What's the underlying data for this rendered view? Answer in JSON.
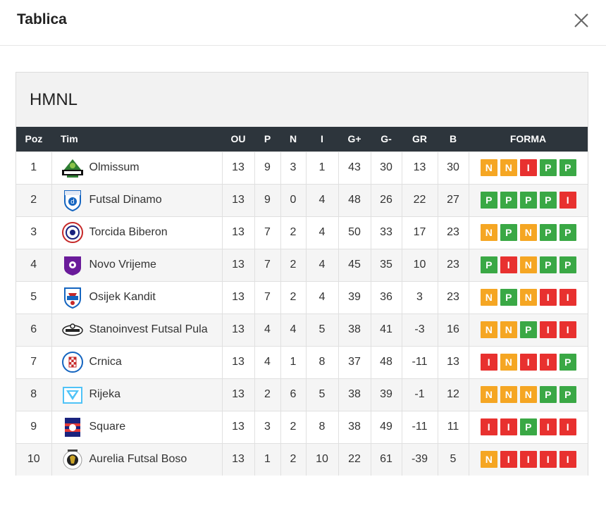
{
  "modal": {
    "title": "Tablica"
  },
  "league": {
    "name": "HMNL"
  },
  "columns": [
    "Poz",
    "Tim",
    "OU",
    "P",
    "N",
    "I",
    "G+",
    "G-",
    "GR",
    "B",
    "FORMA"
  ],
  "colors": {
    "N": "#f5a623",
    "P": "#3aa845",
    "I": "#e8312f",
    "header_bg": "#2d353c"
  },
  "rows": [
    {
      "poz": "1",
      "team": "Olmissum",
      "logo": "olmissum-logo",
      "ou": "13",
      "p": "9",
      "n": "3",
      "i": "1",
      "gplus": "43",
      "gminus": "30",
      "gr": "13",
      "b": "30",
      "forma": [
        "N",
        "N",
        "I",
        "P",
        "P"
      ]
    },
    {
      "poz": "2",
      "team": "Futsal Dinamo",
      "logo": "dinamo-logo",
      "ou": "13",
      "p": "9",
      "n": "0",
      "i": "4",
      "gplus": "48",
      "gminus": "26",
      "gr": "22",
      "b": "27",
      "forma": [
        "P",
        "P",
        "P",
        "P",
        "I"
      ]
    },
    {
      "poz": "3",
      "team": "Torcida Biberon",
      "logo": "torcida-logo",
      "ou": "13",
      "p": "7",
      "n": "2",
      "i": "4",
      "gplus": "50",
      "gminus": "33",
      "gr": "17",
      "b": "23",
      "forma": [
        "N",
        "P",
        "N",
        "P",
        "P"
      ]
    },
    {
      "poz": "4",
      "team": "Novo Vrijeme",
      "logo": "novo-vrijeme-logo",
      "ou": "13",
      "p": "7",
      "n": "2",
      "i": "4",
      "gplus": "45",
      "gminus": "35",
      "gr": "10",
      "b": "23",
      "forma": [
        "P",
        "I",
        "N",
        "P",
        "P"
      ]
    },
    {
      "poz": "5",
      "team": "Osijek Kandit",
      "logo": "osijek-logo",
      "ou": "13",
      "p": "7",
      "n": "2",
      "i": "4",
      "gplus": "39",
      "gminus": "36",
      "gr": "3",
      "b": "23",
      "forma": [
        "N",
        "P",
        "N",
        "I",
        "I"
      ]
    },
    {
      "poz": "6",
      "team": "Stanoinvest Futsal Pula",
      "logo": "pula-logo",
      "ou": "13",
      "p": "4",
      "n": "4",
      "i": "5",
      "gplus": "38",
      "gminus": "41",
      "gr": "-3",
      "b": "16",
      "forma": [
        "N",
        "N",
        "P",
        "I",
        "I"
      ]
    },
    {
      "poz": "7",
      "team": "Crnica",
      "logo": "crnica-logo",
      "ou": "13",
      "p": "4",
      "n": "1",
      "i": "8",
      "gplus": "37",
      "gminus": "48",
      "gr": "-11",
      "b": "13",
      "forma": [
        "I",
        "N",
        "I",
        "I",
        "P"
      ]
    },
    {
      "poz": "8",
      "team": "Rijeka",
      "logo": "rijeka-logo",
      "ou": "13",
      "p": "2",
      "n": "6",
      "i": "5",
      "gplus": "38",
      "gminus": "39",
      "gr": "-1",
      "b": "12",
      "forma": [
        "N",
        "N",
        "N",
        "P",
        "P"
      ]
    },
    {
      "poz": "9",
      "team": "Square",
      "logo": "square-logo",
      "ou": "13",
      "p": "3",
      "n": "2",
      "i": "8",
      "gplus": "38",
      "gminus": "49",
      "gr": "-11",
      "b": "11",
      "forma": [
        "I",
        "I",
        "P",
        "I",
        "I"
      ]
    },
    {
      "poz": "10",
      "team": "Aurelia Futsal Boso",
      "logo": "aurelia-logo",
      "ou": "13",
      "p": "1",
      "n": "2",
      "i": "10",
      "gplus": "22",
      "gminus": "61",
      "gr": "-39",
      "b": "5",
      "forma": [
        "N",
        "I",
        "I",
        "I",
        "I"
      ]
    }
  ]
}
